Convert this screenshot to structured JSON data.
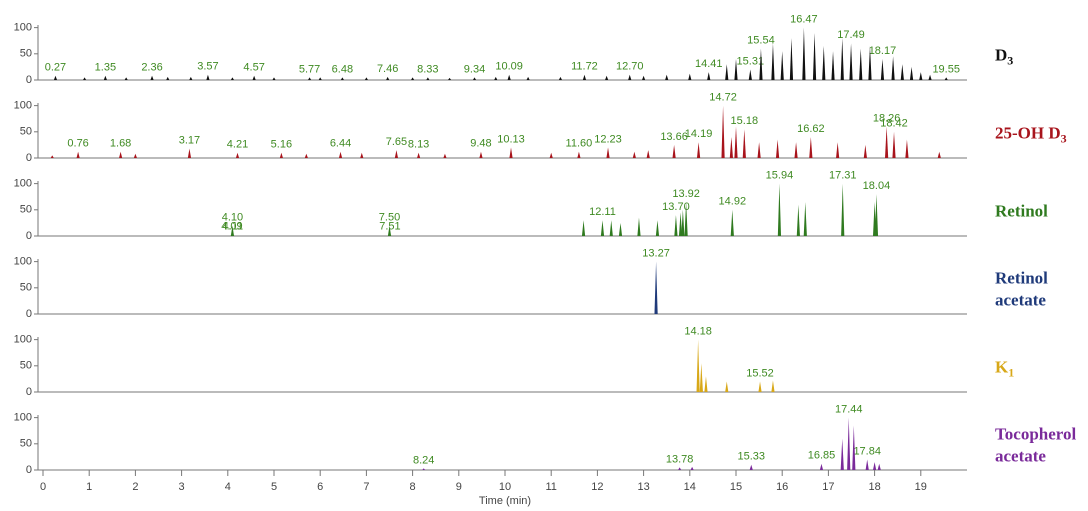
{
  "chart_data": [
    {
      "type": "chromatogram",
      "name_lines": [
        "D"
      ],
      "name_sub": "3",
      "color": "#111111",
      "x": [
        0.27,
        1.35,
        2.36,
        3.57,
        4.57,
        5.77,
        6.48,
        7.46,
        8.33,
        9.34,
        10.09,
        11.72,
        12.7,
        14.41,
        15.31,
        15.54,
        16.47,
        17.49,
        18.17,
        19.55,
        14.8,
        15.0,
        15.8,
        16.0,
        16.2,
        16.7,
        16.9,
        17.1,
        17.3,
        17.7,
        17.9,
        18.4,
        18.6,
        18.8,
        19.0,
        19.2,
        13.5,
        14.0,
        0.9,
        1.8,
        2.7,
        3.2,
        4.1,
        5.0,
        6.0,
        7.0,
        8.0,
        8.8,
        9.8,
        10.5,
        11.2,
        12.2,
        13.0
      ],
      "values": [
        8,
        8,
        8,
        10,
        8,
        5,
        5,
        6,
        5,
        5,
        10,
        10,
        10,
        15,
        20,
        60,
        100,
        70,
        40,
        5,
        30,
        40,
        70,
        55,
        80,
        90,
        65,
        55,
        80,
        60,
        65,
        45,
        30,
        25,
        15,
        10,
        10,
        12,
        5,
        5,
        6,
        6,
        5,
        5,
        5,
        5,
        5,
        4,
        6,
        6,
        6,
        8,
        8
      ],
      "x_labels": [
        "0.27",
        "1.35",
        "2.36",
        "3.57",
        "4.57",
        "5.77",
        "6.48",
        "7.46",
        "8.33",
        "9.34",
        "10.09",
        "11.72",
        "12.70",
        "14.41",
        "15.31",
        "15.54",
        "16.47",
        "17.49",
        "18.17",
        "19.55",
        null,
        null,
        null,
        null,
        null,
        null,
        null,
        null,
        null,
        null,
        null,
        null,
        null,
        null,
        null,
        null,
        null,
        null,
        null,
        null,
        null,
        null,
        null,
        null,
        null,
        null,
        null,
        null,
        null,
        null,
        null,
        null,
        null
      ],
      "xlim": [
        0,
        20
      ],
      "ylim": [
        0,
        105
      ],
      "yticks": [
        0,
        50,
        100
      ]
    },
    {
      "type": "chromatogram",
      "name_lines": [
        "25-OH D"
      ],
      "name_sub": "3",
      "color": "#a8141c",
      "x": [
        0.76,
        1.68,
        3.17,
        4.21,
        5.16,
        6.44,
        7.65,
        8.13,
        9.48,
        10.13,
        11.6,
        12.23,
        13.66,
        14.19,
        14.72,
        15.18,
        16.62,
        18.26,
        18.42,
        14.9,
        15.5,
        15.9,
        16.3,
        17.2,
        17.8,
        18.7,
        19.4,
        13.1,
        12.8,
        0.2,
        2.0,
        5.7,
        6.9,
        8.7,
        11.0,
        15.0
      ],
      "values": [
        12,
        12,
        18,
        10,
        10,
        12,
        15,
        10,
        12,
        20,
        12,
        20,
        25,
        30,
        100,
        55,
        40,
        60,
        50,
        40,
        30,
        35,
        30,
        30,
        25,
        35,
        12,
        15,
        12,
        5,
        8,
        8,
        10,
        8,
        10,
        60
      ],
      "x_labels": [
        "0.76",
        "1.68",
        "3.17",
        "4.21",
        "5.16",
        "6.44",
        "7.65",
        "8.13",
        "9.48",
        "10.13",
        "11.60",
        "12.23",
        "13.66",
        "14.19",
        "14.72",
        "15.18",
        "16.62",
        "18.26",
        "18.42",
        null,
        null,
        null,
        null,
        null,
        null,
        null,
        null,
        null,
        null,
        null,
        null,
        null,
        null,
        null,
        null,
        null
      ],
      "xlim": [
        0,
        20
      ],
      "ylim": [
        0,
        105
      ],
      "yticks": [
        0,
        50,
        100
      ]
    },
    {
      "type": "chromatogram",
      "name_lines": [
        "Retinol"
      ],
      "color": "#2f7a1f",
      "x": [
        4.09,
        4.1,
        4.11,
        7.5,
        7.51,
        12.11,
        13.7,
        13.92,
        14.92,
        15.94,
        17.31,
        18.04,
        11.7,
        12.3,
        12.5,
        12.9,
        13.3,
        13.8,
        13.85,
        16.35,
        16.5,
        18.0
      ],
      "values": [
        3,
        20,
        3,
        20,
        3,
        30,
        40,
        65,
        50,
        100,
        100,
        80,
        30,
        30,
        25,
        35,
        30,
        45,
        50,
        60,
        65,
        65
      ],
      "x_labels": [
        "4.09",
        "4.10",
        "4.11",
        "7.50",
        "7.51",
        "12.11",
        "13.70",
        "13.92",
        "14.92",
        "15.94",
        "17.31",
        "18.04",
        null,
        null,
        null,
        null,
        null,
        null,
        null,
        null,
        null,
        null
      ],
      "xlim": [
        0,
        20
      ],
      "ylim": [
        0,
        105
      ],
      "yticks": [
        0,
        50,
        100
      ]
    },
    {
      "type": "chromatogram",
      "name_lines": [
        "Retinol",
        "acetate"
      ],
      "color": "#1f3a7a",
      "x": [
        13.27
      ],
      "values": [
        100
      ],
      "x_labels": [
        "13.27"
      ],
      "xlim": [
        0,
        20
      ],
      "ylim": [
        0,
        105
      ],
      "yticks": [
        0,
        50,
        100
      ]
    },
    {
      "type": "chromatogram",
      "name_lines": [
        "K"
      ],
      "name_sub": "1",
      "color": "#d8a818",
      "x": [
        14.18,
        15.52,
        14.25,
        14.35,
        14.8,
        15.8
      ],
      "values": [
        100,
        20,
        55,
        30,
        20,
        22
      ],
      "x_labels": [
        "14.18",
        "15.52",
        null,
        null,
        null,
        null
      ],
      "xlim": [
        0,
        20
      ],
      "ylim": [
        0,
        105
      ],
      "yticks": [
        0,
        50,
        100
      ]
    },
    {
      "type": "chromatogram",
      "name_lines": [
        "Tocopherol",
        "acetate"
      ],
      "color": "#7a2a9a",
      "x": [
        8.24,
        13.78,
        15.33,
        16.85,
        17.44,
        17.84,
        14.05,
        17.3,
        17.55,
        18.0,
        18.1
      ],
      "values": [
        3,
        5,
        10,
        12,
        100,
        20,
        6,
        60,
        85,
        15,
        12
      ],
      "x_labels": [
        "8.24",
        "13.78",
        "15.33",
        "16.85",
        "17.44",
        "17.84",
        null,
        null,
        null,
        null,
        null
      ],
      "xlim": [
        0,
        20
      ],
      "ylim": [
        0,
        105
      ],
      "yticks": [
        0,
        50,
        100
      ],
      "xticks": [
        0,
        1,
        2,
        3,
        4,
        5,
        6,
        7,
        8,
        9,
        10,
        11,
        12,
        13,
        14,
        15,
        16,
        17,
        18,
        19
      ],
      "xlabel": "Time (min)"
    }
  ]
}
